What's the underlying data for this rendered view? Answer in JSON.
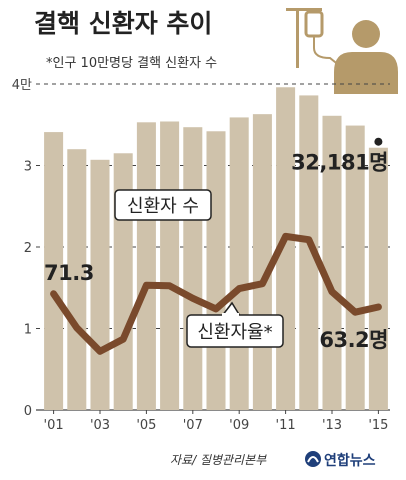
{
  "header": {
    "title": "결핵 신환자 추이",
    "subtitle": "*인구 10만명당 결핵 신환자 수"
  },
  "footer": {
    "source": "자료/ 질병관리본부",
    "logo": "연합뉴스"
  },
  "colors": {
    "bar": "#cfc2ab",
    "line": "#7a4a2c",
    "icon": "#b59a6a",
    "grid": "#444444",
    "logo": "#1f3f7a"
  },
  "chart_data": {
    "type": "bar",
    "y_tick_labels": [
      "0",
      "1",
      "2",
      "3",
      "4만"
    ],
    "ylim": [
      0,
      40000
    ],
    "x_tick_labels": [
      "'01",
      "'03",
      "'05",
      "'07",
      "'09",
      "'11",
      "'13",
      "'15"
    ],
    "years": [
      2001,
      2002,
      2003,
      2004,
      2005,
      2006,
      2007,
      2008,
      2009,
      2010,
      2011,
      2012,
      2013,
      2014,
      2015
    ],
    "series": [
      {
        "name": "신환자 수",
        "kind": "bar",
        "values": [
          34100,
          32000,
          30700,
          31500,
          35300,
          35400,
          34700,
          34200,
          35900,
          36300,
          39600,
          38600,
          36100,
          34900,
          32181
        ]
      },
      {
        "name": "신환자율*",
        "kind": "line",
        "values": [
          71.3,
          50.4,
          36.0,
          43.5,
          76.5,
          76.2,
          68.5,
          62.0,
          74.5,
          77.5,
          106.5,
          104.5,
          72.5,
          60.0,
          63.2
        ]
      }
    ],
    "annotations": {
      "bar_last": "32,181명",
      "rate_first": "71.3",
      "rate_last": "63.2명"
    }
  }
}
